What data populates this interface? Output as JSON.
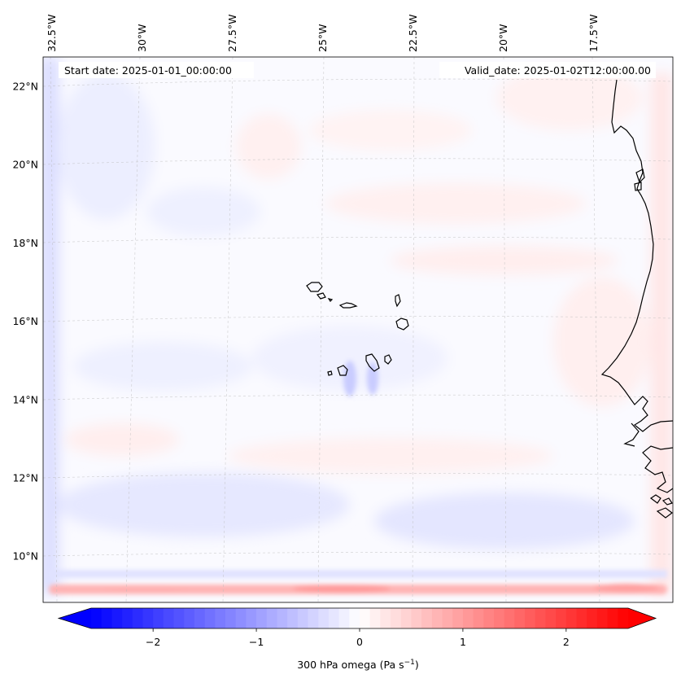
{
  "chart_data": {
    "type": "heatmap",
    "variable": "300 hPa omega",
    "colorbar": {
      "label_prefix": "300 hPa omega (Pa s",
      "label_exp": "−1",
      "label_suffix": ")",
      "ticks": [
        -2,
        -1,
        0,
        1,
        2
      ],
      "tick_labels": [
        "−2",
        "−1",
        "0",
        "1",
        "2"
      ],
      "range": [
        -2.6,
        2.6
      ],
      "extend": "both",
      "cmap": "bwr",
      "colors": {
        "neg": "#0000ff",
        "mid": "#ffffff",
        "pos": "#ff0000"
      }
    },
    "annotations": {
      "start_date": "Start date: 2025-01-01_00:00:00",
      "valid_date": "Valid_date: 2025-01-02T12:00:00.00"
    },
    "lon_labels": [
      {
        "lon": -32.5,
        "label": "32.5°W"
      },
      {
        "lon": -30.0,
        "label": "30°W"
      },
      {
        "lon": -27.5,
        "label": "27.5°W"
      },
      {
        "lon": -25.0,
        "label": "25°W"
      },
      {
        "lon": -22.5,
        "label": "22.5°W"
      },
      {
        "lon": -20.0,
        "label": "20°W"
      },
      {
        "lon": -17.5,
        "label": "17.5°W"
      }
    ],
    "lat_labels": [
      {
        "lat": 22,
        "label": "22°N"
      },
      {
        "lat": 20,
        "label": "20°N"
      },
      {
        "lat": 18,
        "label": "18°N"
      },
      {
        "lat": 16,
        "label": "16°N"
      },
      {
        "lat": 14,
        "label": "14°N"
      },
      {
        "lat": 12,
        "label": "12°N"
      },
      {
        "lat": 10,
        "label": "10°N"
      }
    ],
    "features": [
      "Cape Verde islands",
      "West African coastline"
    ]
  }
}
